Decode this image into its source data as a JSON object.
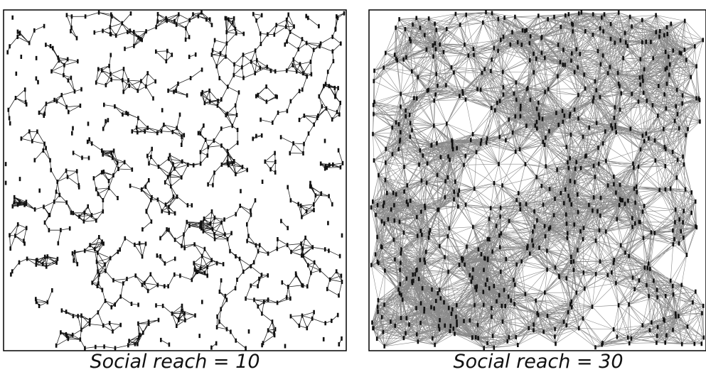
{
  "panels": [
    {
      "caption": "Social reach = 10"
    },
    {
      "caption": "Social reach = 30"
    }
  ]
}
